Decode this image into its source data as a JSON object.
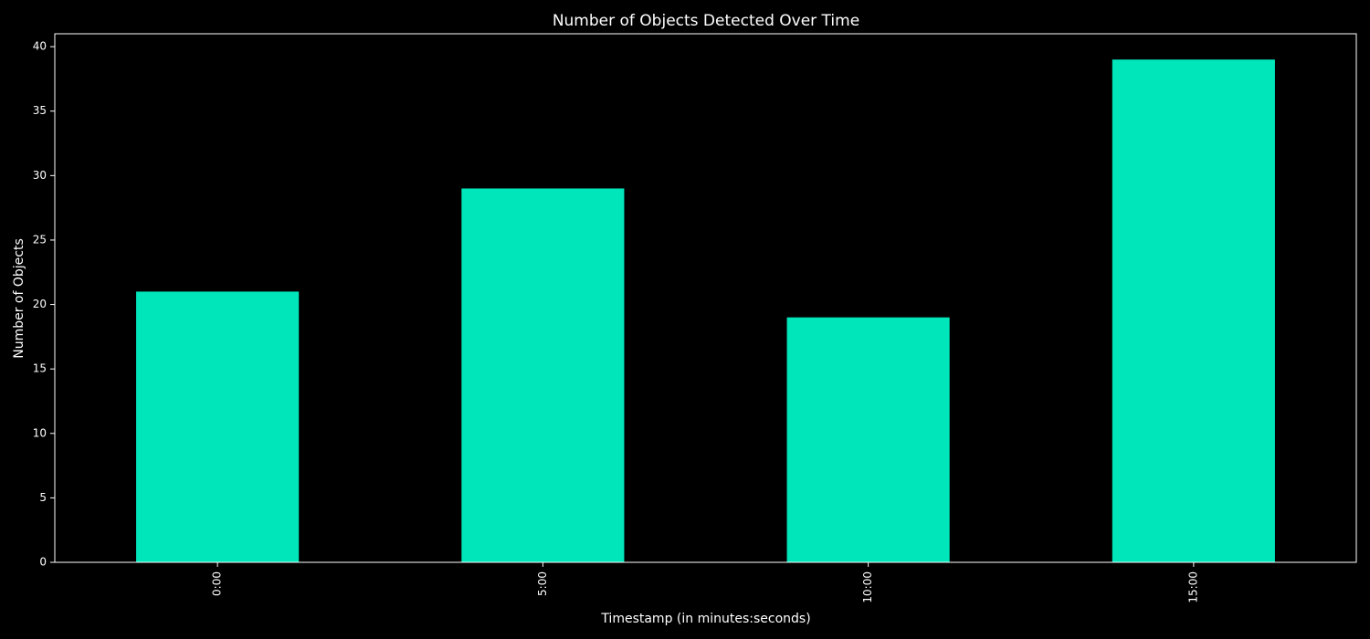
{
  "chart_data": {
    "type": "bar",
    "title": "Number of Objects Detected Over Time",
    "xlabel": "Timestamp (in minutes:seconds)",
    "ylabel": "Number of Objects",
    "categories": [
      "0:00",
      "5:00",
      "10:00",
      "15:00"
    ],
    "values": [
      21,
      29,
      19,
      39
    ],
    "ylim": [
      0,
      41
    ],
    "yticks": [
      0,
      5,
      10,
      15,
      20,
      25,
      30,
      35,
      40
    ],
    "grid": false,
    "legend": "none",
    "colors": {
      "background": "#000000",
      "bar": "#00e6bb",
      "axes": "#ffffff",
      "text": "#ffffff"
    }
  }
}
